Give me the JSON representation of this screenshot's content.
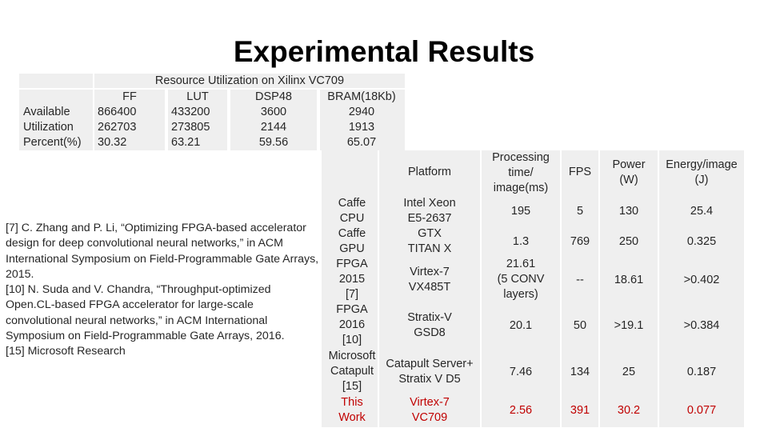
{
  "title": "Experimental Results",
  "resource_table": {
    "caption": "Resource Utilization on Xilinx VC709",
    "headers": [
      "FF",
      "LUT",
      "DSP48",
      "BRAM(18Kb)"
    ],
    "rows": [
      {
        "label": "Available",
        "values": [
          "866400",
          "433200",
          "3600",
          "2940"
        ]
      },
      {
        "label": "Utilization",
        "values": [
          "262703",
          "273805",
          "2144",
          "1913"
        ]
      },
      {
        "label": "Percent(%)",
        "values": [
          "30.32",
          "63.21",
          "59.56",
          "65.07"
        ]
      }
    ]
  },
  "references": [
    "[7] C. Zhang and P. Li, “Optimizing FPGA-based accelerator design for deep convolutional neural networks,” in ACM International Symposium on Field-Programmable Gate Arrays, 2015.",
    "[10] N. Suda and V. Chandra, “Throughput-optimized Open.CL-based FPGA accelerator for large-scale convolutional neural networks,” in ACM International Symposium on Field-Programmable Gate Arrays, 2016.",
    "[15] Microsoft Research"
  ],
  "comparison_table": {
    "headers": {
      "platform": "Platform",
      "time": [
        "Processing",
        "time/",
        "image(ms)"
      ],
      "fps": "FPS",
      "power": [
        "Power",
        "(W)"
      ],
      "energy": [
        "Energy/image",
        "(J)"
      ]
    },
    "rows": [
      {
        "work": [
          "Caffe",
          "CPU"
        ],
        "platform": [
          "Intel Xeon",
          "E5-2637"
        ],
        "time": [
          "195"
        ],
        "fps": "5",
        "power": "130",
        "energy": "25.4"
      },
      {
        "work": [
          "Caffe",
          "GPU"
        ],
        "platform": [
          "GTX",
          "TITAN X"
        ],
        "time": [
          "1.3"
        ],
        "fps": "769",
        "power": "250",
        "energy": "0.325"
      },
      {
        "work": [
          "FPGA",
          "2015",
          "[7]"
        ],
        "platform": [
          "Virtex-7",
          "VX485T"
        ],
        "time": [
          "21.61",
          "(5 CONV",
          "layers)"
        ],
        "fps": "--",
        "power": "18.61",
        "energy": ">0.402"
      },
      {
        "work": [
          "FPGA",
          "2016",
          "[10]"
        ],
        "platform": [
          "Stratix-V",
          "GSD8"
        ],
        "time": [
          "20.1"
        ],
        "fps": "50",
        "power": ">19.1",
        "energy": ">0.384"
      },
      {
        "work": [
          "Microsoft",
          "Catapult",
          "[15]"
        ],
        "platform": [
          "Catapult Server+",
          "Stratix V D5"
        ],
        "time": [
          "7.46"
        ],
        "fps": "134",
        "power": "25",
        "energy": "0.187"
      },
      {
        "work": [
          "This",
          "Work"
        ],
        "platform": [
          "Virtex-7",
          "VC709"
        ],
        "time": [
          "2.56"
        ],
        "fps": "391",
        "power": "30.2",
        "energy": "0.077"
      }
    ]
  },
  "colors": {
    "highlight": "#c00000",
    "cell_shade": "#efefef"
  }
}
